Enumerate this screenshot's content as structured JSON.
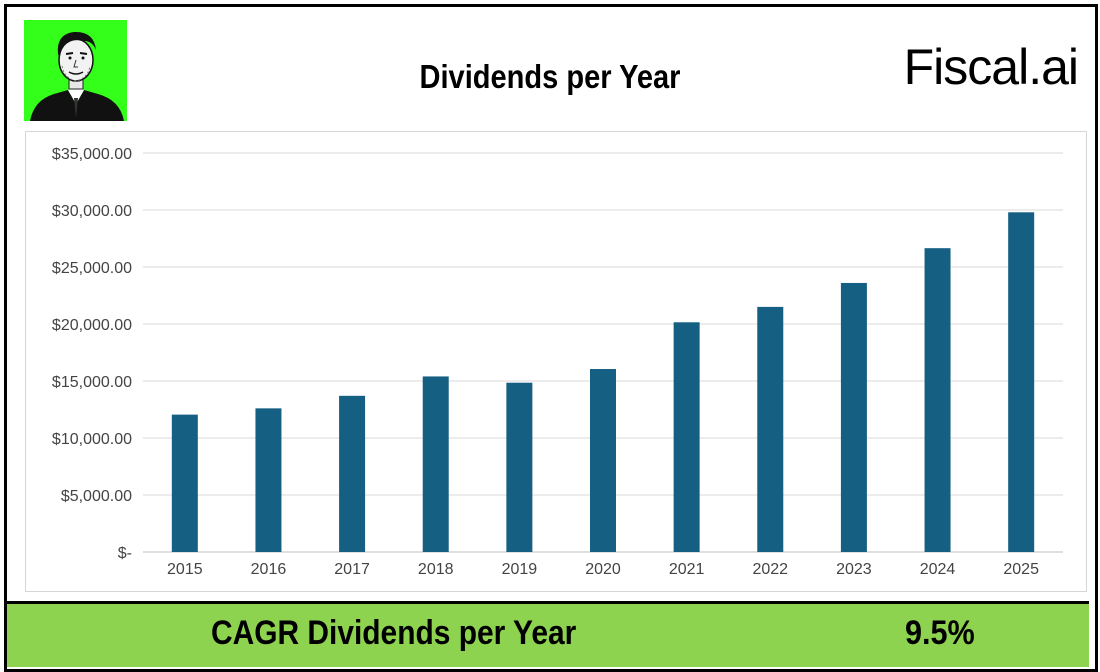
{
  "header": {
    "title": "Dividends per Year",
    "brand": "Fiscal.ai"
  },
  "footer": {
    "label": "CAGR Dividends per Year",
    "value": "9.5%"
  },
  "colors": {
    "bar": "#155f83",
    "avatar_bg": "#33ff1a",
    "footer_bg": "#8ed34f",
    "grid": "#d9d9d9"
  },
  "chart_data": {
    "type": "bar",
    "title": "Dividends per Year",
    "categories": [
      "2015",
      "2016",
      "2017",
      "2018",
      "2019",
      "2020",
      "2021",
      "2022",
      "2023",
      "2024",
      "2025"
    ],
    "values": [
      12050,
      12600,
      13700,
      15400,
      14850,
      16050,
      20150,
      21500,
      23600,
      26650,
      29800
    ],
    "ylim": [
      0,
      35000
    ],
    "yticks": [
      0,
      5000,
      10000,
      15000,
      20000,
      25000,
      30000,
      35000
    ],
    "ytick_labels": [
      "$-",
      "$5,000.00",
      "$10,000.00",
      "$15,000.00",
      "$20,000.00",
      "$25,000.00",
      "$30,000.00",
      "$35,000.00"
    ],
    "grid": true,
    "legend": "none"
  }
}
